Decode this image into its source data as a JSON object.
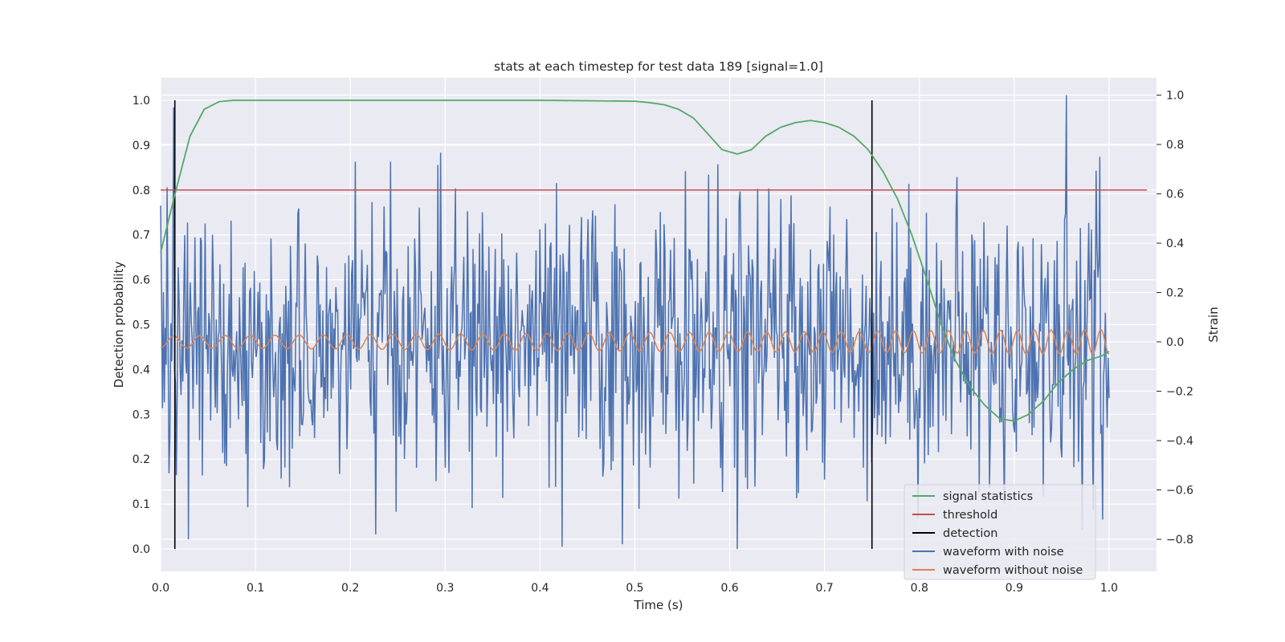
{
  "chart_data": {
    "type": "line",
    "title": "stats at each timestep for test data 189 [signal=1.0]",
    "xlabel": "Time (s)",
    "ylabel": "Detection probability",
    "y2label": "Strain",
    "xlim": [
      0.0,
      1.05
    ],
    "ylim": [
      -0.05,
      1.05
    ],
    "y2lim": [
      -0.93,
      1.07
    ],
    "grid": true,
    "legend_position": "lower-right",
    "xticks": [
      "0.0",
      "0.1",
      "0.2",
      "0.3",
      "0.4",
      "0.5",
      "0.6",
      "0.7",
      "0.8",
      "0.9",
      "1.0"
    ],
    "yticks": [
      "0.0",
      "0.1",
      "0.2",
      "0.3",
      "0.4",
      "0.5",
      "0.6",
      "0.7",
      "0.8",
      "0.9",
      "1.0"
    ],
    "y2ticks": [
      "−0.8",
      "−0.6",
      "−0.4",
      "−0.2",
      "0.0",
      "0.2",
      "0.4",
      "0.6",
      "0.8",
      "1.0"
    ],
    "series": [
      {
        "name": "signal statistics",
        "color": "#55a868",
        "axis": "left",
        "x": [
          0.0,
          0.015,
          0.031,
          0.046,
          0.062,
          0.077,
          0.1,
          0.2,
          0.3,
          0.4,
          0.5,
          0.515,
          0.531,
          0.546,
          0.562,
          0.577,
          0.592,
          0.608,
          0.623,
          0.638,
          0.654,
          0.669,
          0.685,
          0.7,
          0.715,
          0.731,
          0.746,
          0.762,
          0.777,
          0.792,
          0.808,
          0.823,
          0.838,
          0.854,
          0.869,
          0.885,
          0.9,
          0.915,
          0.931,
          0.946,
          0.962,
          0.977,
          0.992,
          1.0
        ],
        "values": [
          0.66,
          0.79,
          0.92,
          0.98,
          0.997,
          1.0,
          1.0,
          1.0,
          1.0,
          1.0,
          0.998,
          0.995,
          0.99,
          0.98,
          0.96,
          0.925,
          0.89,
          0.88,
          0.89,
          0.92,
          0.94,
          0.95,
          0.955,
          0.95,
          0.94,
          0.92,
          0.89,
          0.84,
          0.78,
          0.7,
          0.6,
          0.5,
          0.42,
          0.36,
          0.32,
          0.29,
          0.285,
          0.3,
          0.33,
          0.37,
          0.4,
          0.42,
          0.43,
          0.44
        ]
      },
      {
        "name": "threshold",
        "color": "#c44e52",
        "axis": "left",
        "x": [
          0.0,
          1.04
        ],
        "values": [
          0.8,
          0.8
        ]
      },
      {
        "name": "detection",
        "color": "#000000",
        "axis": "left",
        "x": [
          0.015,
          0.75
        ],
        "ymin": 0.0,
        "ymax": 1.0
      },
      {
        "name": "waveform with noise",
        "color": "#4c72b0",
        "axis": "right",
        "x_start": 0.0,
        "x_end": 1.0,
        "amplitude_std": 0.28,
        "extremes": [
          {
            "x": 0.014,
            "value": 0.95
          },
          {
            "x": 0.029,
            "value": -0.8
          },
          {
            "x": 0.205,
            "value": 0.73
          },
          {
            "x": 0.423,
            "value": -0.83
          },
          {
            "x": 0.487,
            "value": -0.82
          },
          {
            "x": 0.608,
            "value": -0.84
          },
          {
            "x": 0.955,
            "value": 1.0
          },
          {
            "x": 0.983,
            "value": -0.68
          },
          {
            "x": 0.99,
            "value": 0.75
          },
          {
            "x": 0.993,
            "value": -0.72
          }
        ]
      },
      {
        "name": "waveform without noise",
        "color": "#dd8452",
        "axis": "right",
        "x_start": 0.0,
        "x_end": 1.0,
        "amplitude_start": 0.024,
        "amplitude_end": 0.05,
        "cycles_start": 36,
        "cycles_end": 58
      }
    ]
  }
}
